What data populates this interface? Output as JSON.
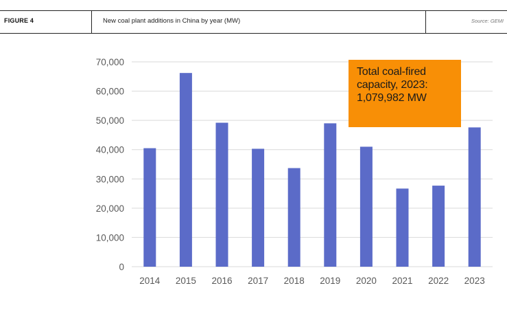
{
  "header": {
    "figure_label": "FIGURE 4",
    "title": "New coal plant additions in China by year (MW)",
    "source": "Source: GEMI"
  },
  "callout": {
    "line1": "Total coal-fired",
    "line2": "capacity, 2023:",
    "line3": "1,079,982 MW"
  },
  "colors": {
    "bar": "#5b6bc8",
    "callout": "#f88f06",
    "grid": "#d9d9d9"
  },
  "chart_data": {
    "type": "bar",
    "title": "",
    "xlabel": "",
    "ylabel": "",
    "categories": [
      "2014",
      "2015",
      "2016",
      "2017",
      "2018",
      "2019",
      "2020",
      "2021",
      "2022",
      "2023"
    ],
    "values": [
      40500,
      66200,
      49200,
      40300,
      33700,
      49000,
      41000,
      26700,
      27700,
      47600
    ],
    "ylim": [
      0,
      70000
    ],
    "yticks": [
      0,
      10000,
      20000,
      30000,
      40000,
      50000,
      60000,
      70000
    ],
    "ytick_labels": [
      "0",
      "10,000",
      "20,000",
      "30,000",
      "40,000",
      "50,000",
      "60,000",
      "70,000"
    ],
    "grid": true,
    "legend": "none"
  }
}
